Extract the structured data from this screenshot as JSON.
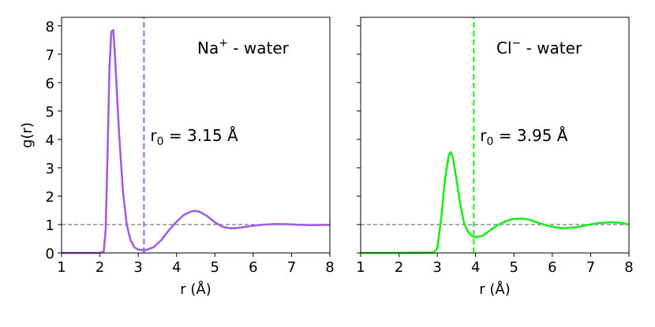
{
  "chart_data": [
    {
      "type": "line",
      "xlabel": "r (Å)",
      "ylabel": "g(r)",
      "annotation": {
        "base": "Na",
        "sup": "+",
        "rest": " - water"
      },
      "r0_label": {
        "base": "r",
        "sub": "0",
        "rest": " = 3.15 Å"
      },
      "vline": 3.15,
      "hline": 1,
      "x": [
        1,
        1.5,
        2,
        2.1,
        2.15,
        2.2,
        2.25,
        2.3,
        2.35,
        2.4,
        2.5,
        2.6,
        2.7,
        2.8,
        2.9,
        3.0,
        3.1,
        3.2,
        3.4,
        3.6,
        3.8,
        4.0,
        4.2,
        4.4,
        4.5,
        4.6,
        4.8,
        5.0,
        5.2,
        5.4,
        5.6,
        5.8,
        6.0,
        6.3,
        6.6,
        6.9,
        7.2,
        7.5,
        8.0
      ],
      "series": [
        {
          "color": "#a35ddf",
          "values": [
            0,
            0,
            0,
            0.05,
            0.8,
            3.5,
            6.5,
            7.8,
            7.85,
            6.8,
            4.2,
            2.2,
            1.0,
            0.45,
            0.2,
            0.12,
            0.1,
            0.1,
            0.2,
            0.45,
            0.8,
            1.1,
            1.35,
            1.47,
            1.48,
            1.45,
            1.3,
            1.08,
            0.92,
            0.87,
            0.88,
            0.92,
            0.96,
            1.0,
            1.02,
            1.01,
            0.99,
            0.98,
            0.99
          ]
        }
      ],
      "xlim": [
        1,
        8
      ],
      "ylim": [
        0,
        8.3
      ],
      "xticks": [
        1,
        2,
        3,
        4,
        5,
        6,
        7,
        8
      ],
      "yticks": [
        0,
        1,
        2,
        3,
        4,
        5,
        6,
        7,
        8
      ],
      "ytick_labels": true
    },
    {
      "type": "line",
      "xlabel": "r (Å)",
      "annotation": {
        "base": "Cl",
        "sup": "−",
        "rest": " - water"
      },
      "r0_label": {
        "base": "r",
        "sub": "0",
        "rest": " = 3.95 Å"
      },
      "vline": 3.95,
      "hline": 1,
      "x": [
        1,
        2,
        2.9,
        3.0,
        3.1,
        3.2,
        3.3,
        3.35,
        3.4,
        3.5,
        3.6,
        3.7,
        3.8,
        3.9,
        4.0,
        4.2,
        4.4,
        4.6,
        4.8,
        5.0,
        5.2,
        5.4,
        5.6,
        5.8,
        6.0,
        6.3,
        6.6,
        6.9,
        7.2,
        7.5,
        7.8,
        8.0
      ],
      "series": [
        {
          "color": "#1aee1a",
          "values": [
            0,
            0,
            0.01,
            0.15,
            1.2,
            2.6,
            3.45,
            3.55,
            3.4,
            2.6,
            1.7,
            1.05,
            0.75,
            0.6,
            0.55,
            0.62,
            0.82,
            1.0,
            1.13,
            1.2,
            1.21,
            1.17,
            1.08,
            0.99,
            0.92,
            0.87,
            0.9,
            0.98,
            1.05,
            1.08,
            1.06,
            1.0
          ]
        }
      ],
      "xlim": [
        1,
        8
      ],
      "ylim": [
        0,
        8.3
      ],
      "xticks": [
        1,
        2,
        3,
        4,
        5,
        6,
        7,
        8
      ],
      "yticks": [
        0,
        1,
        2,
        3,
        4,
        5,
        6,
        7,
        8
      ],
      "ytick_labels": false
    }
  ]
}
